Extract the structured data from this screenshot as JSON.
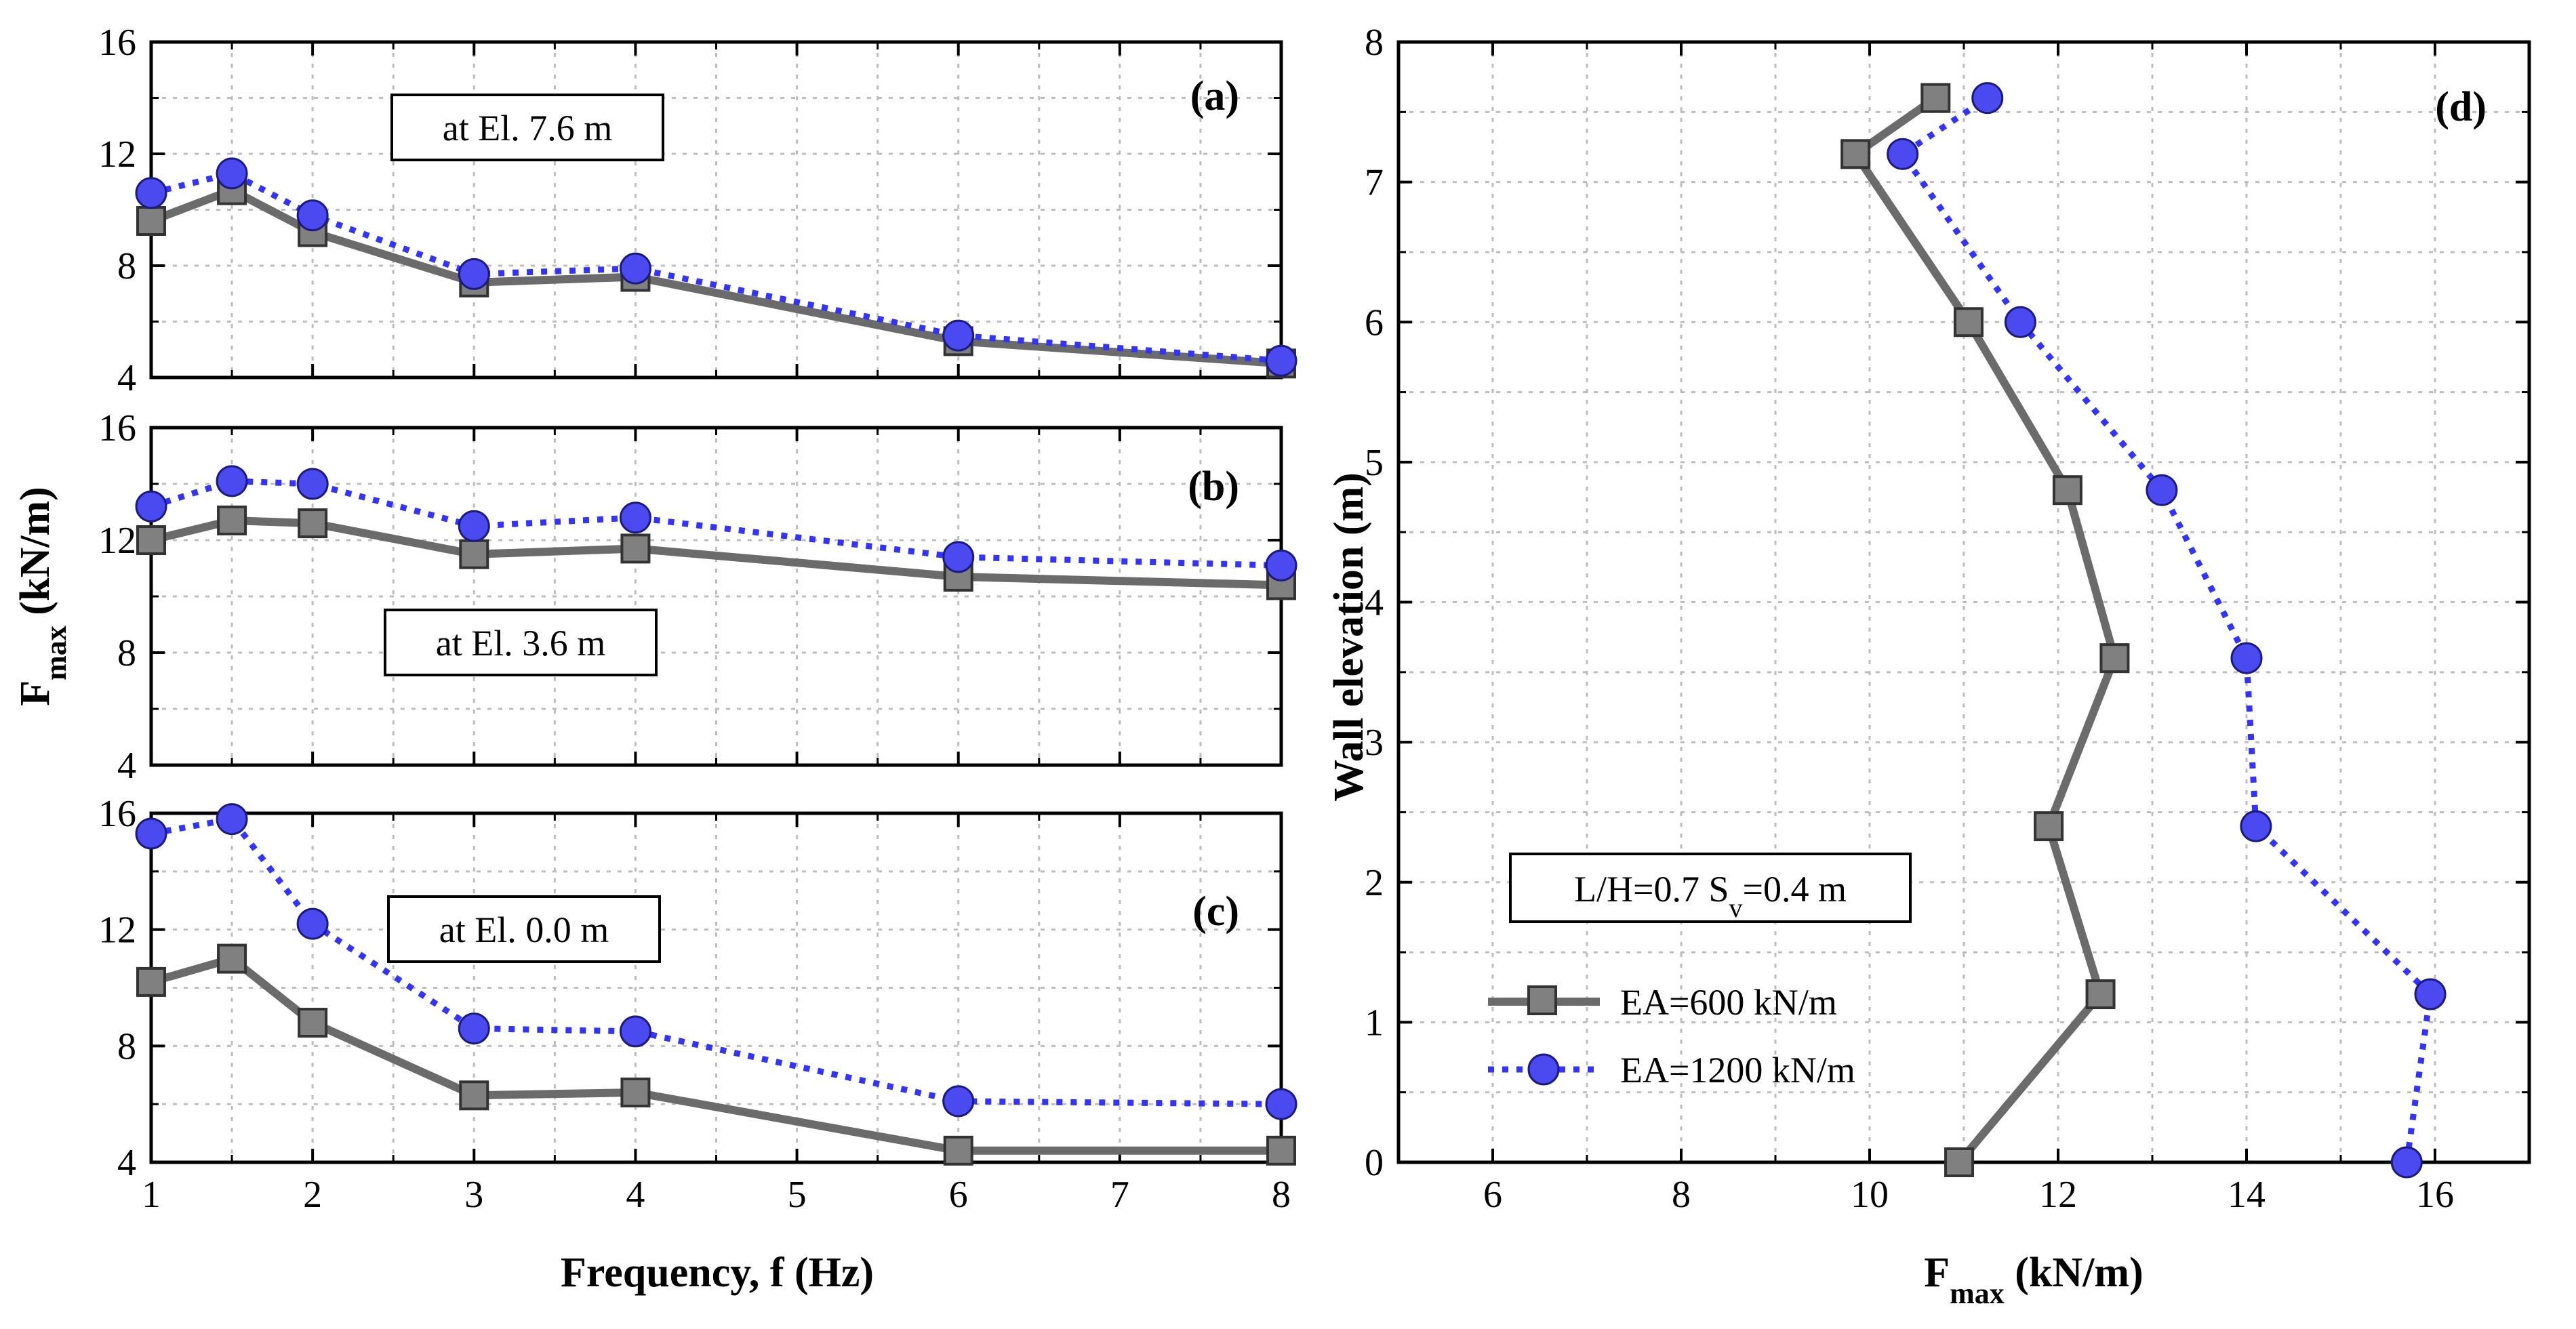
{
  "chart_data": [
    {
      "type": "line",
      "panel_label": "(a)",
      "annotation": "at El. 7.6 m",
      "x": [
        1,
        1.5,
        2,
        3,
        4,
        6,
        8
      ],
      "xlim": [
        1,
        8
      ],
      "xticks": [
        "1",
        "2",
        "3",
        "4",
        "5",
        "6",
        "7",
        "8"
      ],
      "ylim": [
        4,
        16
      ],
      "yticks": [
        "4",
        "8",
        "12",
        "16"
      ],
      "grid": true,
      "series": [
        {
          "name": "EA=600 kN/m",
          "values": [
            9.6,
            10.7,
            9.2,
            7.4,
            7.6,
            5.3,
            4.5
          ]
        },
        {
          "name": "EA=1200 kN/m",
          "values": [
            10.6,
            11.3,
            9.8,
            7.7,
            7.9,
            5.5,
            4.6
          ]
        }
      ]
    },
    {
      "type": "line",
      "panel_label": "(b)",
      "annotation": "at El. 3.6 m",
      "x": [
        1,
        1.5,
        2,
        3,
        4,
        6,
        8
      ],
      "xlim": [
        1,
        8
      ],
      "ylim": [
        4,
        16
      ],
      "yticks": [
        "4",
        "8",
        "12",
        "16"
      ],
      "grid": true,
      "series": [
        {
          "name": "EA=600 kN/m",
          "values": [
            12.0,
            12.7,
            12.6,
            11.5,
            11.7,
            10.7,
            10.4
          ]
        },
        {
          "name": "EA=1200 kN/m",
          "values": [
            13.2,
            14.1,
            14.0,
            12.5,
            12.8,
            11.4,
            11.1
          ]
        }
      ]
    },
    {
      "type": "line",
      "panel_label": "(c)",
      "annotation": "at El. 0.0 m",
      "x": [
        1,
        1.5,
        2,
        3,
        4,
        6,
        8
      ],
      "xlim": [
        1,
        8
      ],
      "xticks": [
        "1",
        "2",
        "3",
        "4",
        "5",
        "6",
        "7",
        "8"
      ],
      "xlabel": "Frequency, f (Hz)",
      "ylim": [
        4,
        16
      ],
      "yticks": [
        "4",
        "8",
        "12",
        "16"
      ],
      "grid": true,
      "series": [
        {
          "name": "EA=600 kN/m",
          "values": [
            10.2,
            11.0,
            8.8,
            6.3,
            6.4,
            4.4,
            4.4
          ]
        },
        {
          "name": "EA=1200 kN/m",
          "values": [
            15.3,
            15.8,
            12.2,
            8.6,
            8.5,
            6.1,
            6.0
          ]
        }
      ]
    },
    {
      "type": "line",
      "panel_label": "(d)",
      "annotation": "L/H=0.7 S",
      "annotation_sub": "v",
      "annotation_tail": "=0.4 m",
      "xlim": [
        5,
        17
      ],
      "xticks": [
        "6",
        "8",
        "10",
        "12",
        "14",
        "16"
      ],
      "xlabel": "F",
      "xlabel_sub": "max",
      "xlabel_tail": " (kN/m)",
      "ylim": [
        0,
        8
      ],
      "yticks": [
        "0",
        "1",
        "2",
        "3",
        "4",
        "5",
        "6",
        "7",
        "8"
      ],
      "ylabel": "Wall elevation (m)",
      "grid": true,
      "legend": "lower-left",
      "elevations": [
        0,
        1.2,
        2.4,
        3.6,
        4.8,
        6.0,
        7.2,
        7.6
      ],
      "series": [
        {
          "name": "EA=600 kN/m",
          "values": [
            10.95,
            12.45,
            11.9,
            12.6,
            12.1,
            11.05,
            9.85,
            10.7
          ]
        },
        {
          "name": "EA=1200 kN/m",
          "values": [
            15.7,
            15.95,
            14.1,
            14.0,
            13.1,
            11.6,
            10.35,
            11.25
          ]
        }
      ]
    }
  ],
  "shared_ylabel": "F",
  "shared_ylabel_sub": "max",
  "shared_ylabel_tail": " (kN/m)",
  "colors": {
    "series600": "#6b6b6b",
    "series600_marker": "#808080",
    "series1200": "#3333ff",
    "series1200_marker": "#4a4af0"
  }
}
